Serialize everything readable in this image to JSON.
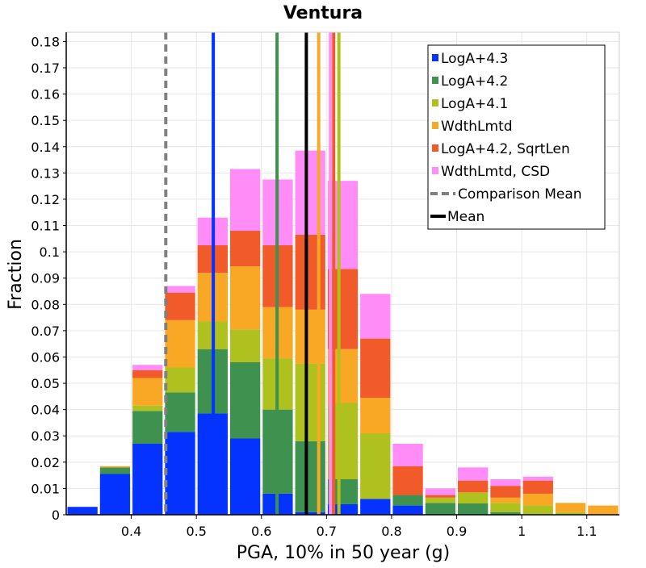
{
  "chart_data": {
    "type": "bar",
    "stacked": true,
    "title": "Ventura",
    "xlabel": "PGA, 10% in 50 year (g)",
    "ylabel": "Fraction",
    "xlim": [
      0.3,
      1.15
    ],
    "ylim": [
      0,
      0.1835
    ],
    "bin_width": 0.05,
    "grid": true,
    "legend_position": "top-right",
    "x_ticks": [
      "0.4",
      "0.5",
      "0.6",
      "0.7",
      "0.8",
      "0.9",
      "1",
      "1.1"
    ],
    "x_tick_values": [
      0.4,
      0.5,
      0.6,
      0.7,
      0.8,
      0.9,
      1.0,
      1.1
    ],
    "y_ticks": [
      "0",
      "0.01",
      "0.02",
      "0.03",
      "0.04",
      "0.05",
      "0.06",
      "0.07",
      "0.08",
      "0.09",
      "0.1",
      "0.11",
      "0.12",
      "0.13",
      "0.14",
      "0.15",
      "0.16",
      "0.17",
      "0.18"
    ],
    "y_tick_values": [
      0,
      0.01,
      0.02,
      0.03,
      0.04,
      0.05,
      0.06,
      0.07,
      0.08,
      0.09,
      0.1,
      0.11,
      0.12,
      0.13,
      0.14,
      0.15,
      0.16,
      0.17,
      0.18
    ],
    "x": [
      0.325,
      0.375,
      0.425,
      0.475,
      0.525,
      0.575,
      0.625,
      0.675,
      0.725,
      0.775,
      0.825,
      0.875,
      0.925,
      0.975,
      1.025,
      1.075,
      1.125
    ],
    "series": [
      {
        "name": "LogA+4.3",
        "color": "#0433ff",
        "values": [
          0.003,
          0.0155,
          0.027,
          0.0315,
          0.0385,
          0.029,
          0.008,
          0.001,
          0.004,
          0.006,
          0.0035,
          0,
          0,
          0,
          0,
          0,
          0
        ]
      },
      {
        "name": "LogA+4.2",
        "color": "#3f9150",
        "values": [
          0,
          0.0025,
          0.0125,
          0.015,
          0.0245,
          0.029,
          0.032,
          0.027,
          0.0095,
          0,
          0.004,
          0.0045,
          0.0043,
          0.001,
          0,
          0,
          0
        ]
      },
      {
        "name": "LogA+4.1",
        "color": "#afc11f",
        "values": [
          0,
          0,
          0.002,
          0.0095,
          0.0105,
          0.0125,
          0.0195,
          0.0295,
          0.029,
          0.025,
          0.0,
          0.002,
          0.0042,
          0.0035,
          0.0035,
          0.001,
          0
        ]
      },
      {
        "name": "WdthLmtd",
        "color": "#f9a825",
        "values": [
          0,
          0.0005,
          0.0105,
          0.018,
          0.0185,
          0.024,
          0.0195,
          0.0205,
          0.0205,
          0.0135,
          0.0,
          0.0,
          0.0,
          0.002,
          0.0045,
          0.0035,
          0.0035
        ]
      },
      {
        "name": "LogA+4.2, SqrtLen",
        "color": "#f15a29",
        "values": [
          0,
          0,
          0.003,
          0.0105,
          0.0105,
          0.0135,
          0.0235,
          0.0285,
          0.0305,
          0.0225,
          0.011,
          0.001,
          0.0045,
          0.0045,
          0.005,
          0,
          0
        ]
      },
      {
        "name": "WdthLmtd, CSD",
        "color": "#ff8cf7",
        "values": [
          0,
          0,
          0.002,
          0.0025,
          0.0105,
          0.0235,
          0.025,
          0.032,
          0.0335,
          0.017,
          0.0085,
          0.0025,
          0.005,
          0.0025,
          0.0015,
          0,
          0
        ]
      }
    ],
    "vlines": [
      {
        "x": 0.453,
        "name": "Comparison Mean",
        "color": "#808080",
        "dash": true
      },
      {
        "x": 0.526,
        "color": "#0433ff"
      },
      {
        "x": 0.624,
        "color": "#3f9150"
      },
      {
        "x": 0.719,
        "color": "#afc11f"
      },
      {
        "x": 0.688,
        "color": "#f9a825"
      },
      {
        "x": 0.711,
        "color": "#f15a29"
      },
      {
        "x": 0.706,
        "color": "#ff8cf7"
      },
      {
        "x": 0.669,
        "name": "Mean",
        "color": "#000000"
      }
    ],
    "legend": [
      {
        "label": "LogA+4.3",
        "color": "#0433ff",
        "kind": "box"
      },
      {
        "label": "LogA+4.2",
        "color": "#3f9150",
        "kind": "box"
      },
      {
        "label": "LogA+4.1",
        "color": "#afc11f",
        "kind": "box"
      },
      {
        "label": "WdthLmtd",
        "color": "#f9a825",
        "kind": "box"
      },
      {
        "label": "LogA+4.2, SqrtLen",
        "color": "#f15a29",
        "kind": "box"
      },
      {
        "label": "WdthLmtd, CSD",
        "color": "#ff8cf7",
        "kind": "box"
      },
      {
        "label": "Comparison Mean",
        "color": "#808080",
        "kind": "dash"
      },
      {
        "label": "Mean",
        "color": "#000000",
        "kind": "line"
      }
    ]
  }
}
